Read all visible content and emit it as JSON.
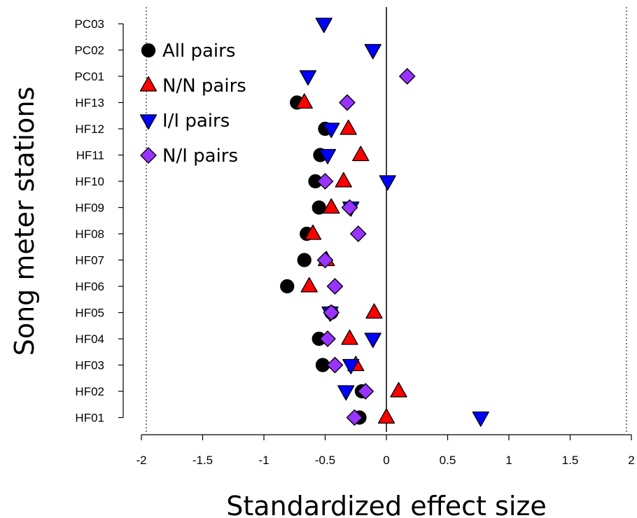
{
  "chart_data": {
    "type": "scatter",
    "title": "",
    "xlabel": "Standardized effect size",
    "ylabel": "Song meter stations",
    "xlim": [
      -2,
      2
    ],
    "xticks": [
      "-2",
      "-1.5",
      "-1",
      "-0.5",
      "0",
      "0.5",
      "1",
      "1.5",
      "2"
    ],
    "categories": [
      "PC03",
      "PC02",
      "PC01",
      "HF13",
      "HF12",
      "HF11",
      "HF10",
      "HF09",
      "HF08",
      "HF07",
      "HF06",
      "HF05",
      "HF04",
      "HF03",
      "HF02",
      "HF01"
    ],
    "reference_lines": {
      "solid": 0,
      "dotted": [
        -1.96,
        1.96
      ]
    },
    "grid": false,
    "legend_position": "top-left",
    "series": [
      {
        "name": "All pairs",
        "marker": "circle",
        "color": "#000000",
        "values": [
          null,
          null,
          null,
          -0.73,
          -0.5,
          -0.54,
          -0.58,
          -0.55,
          -0.65,
          -0.67,
          -0.81,
          -0.45,
          -0.55,
          -0.52,
          -0.2,
          -0.22
        ]
      },
      {
        "name": "N/N pairs",
        "marker": "triangle-up",
        "color": "#ff0000",
        "values": [
          null,
          null,
          null,
          -0.67,
          -0.31,
          -0.21,
          -0.35,
          -0.45,
          -0.6,
          -0.49,
          -0.63,
          -0.1,
          -0.3,
          -0.25,
          0.1,
          0.0
        ]
      },
      {
        "name": "I/I pairs",
        "marker": "triangle-down",
        "color": "#0000ff",
        "values": [
          -0.51,
          -0.11,
          -0.64,
          null,
          -0.45,
          -0.48,
          0.01,
          -0.29,
          null,
          null,
          null,
          -0.46,
          -0.11,
          -0.29,
          -0.33,
          0.77
        ]
      },
      {
        "name": "N/I pairs",
        "marker": "diamond",
        "color": "#9933ff",
        "values": [
          null,
          null,
          0.17,
          -0.32,
          null,
          null,
          -0.5,
          -0.3,
          -0.23,
          -0.5,
          -0.42,
          -0.45,
          -0.48,
          -0.42,
          -0.17,
          -0.26
        ]
      }
    ]
  }
}
